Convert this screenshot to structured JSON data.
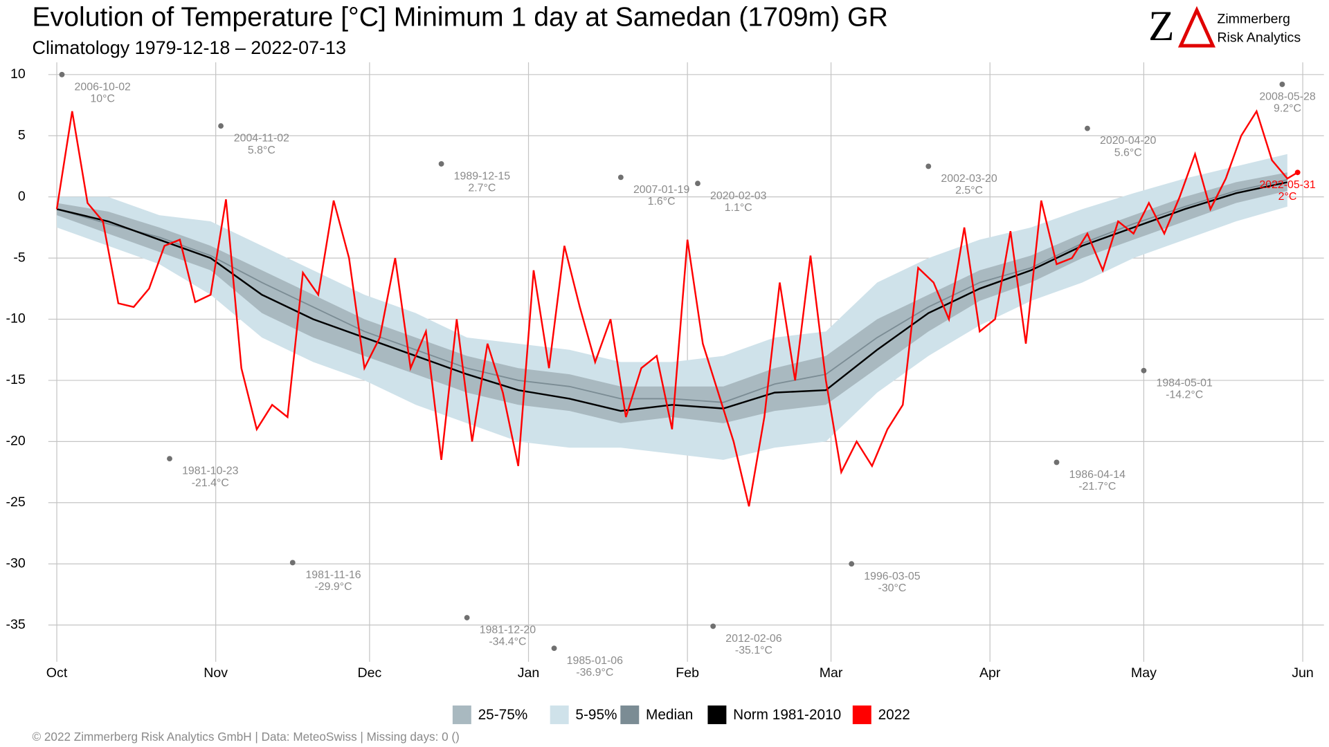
{
  "chart_data": {
    "type": "line",
    "title": "Evolution of Temperature [°C] Minimum 1 day at Samedan (1709m) GR",
    "subtitle": "Climatology 1979-12-18 – 2022-07-13",
    "footer": "©  2022 Zimmerberg Risk Analytics GmbH | Data: MeteoSwiss | Missing days: 0 ()",
    "logo": {
      "letter": "Z",
      "name": "Zimmerberg",
      "subname": "Risk Analytics"
    },
    "grid": true,
    "legend": "bottom",
    "xlim": [
      0,
      243
    ],
    "xticks": [
      {
        "value": 0,
        "label": "Oct"
      },
      {
        "value": 31,
        "label": "Nov"
      },
      {
        "value": 61,
        "label": "Dec"
      },
      {
        "value": 92,
        "label": "Jan"
      },
      {
        "value": 123,
        "label": "Feb"
      },
      {
        "value": 151,
        "label": "Mar"
      },
      {
        "value": 182,
        "label": "Apr"
      },
      {
        "value": 212,
        "label": "May"
      },
      {
        "value": 243,
        "label": "Jun"
      }
    ],
    "ylim": [
      -38,
      11
    ],
    "yticks": [
      10,
      5,
      0,
      -5,
      -10,
      -15,
      -20,
      -25,
      -30,
      -35
    ],
    "x": [
      0,
      10,
      20,
      30,
      40,
      50,
      60,
      70,
      80,
      90,
      100,
      110,
      120,
      130,
      140,
      150,
      160,
      170,
      180,
      190,
      200,
      210,
      220,
      230,
      240
    ],
    "bands": [
      {
        "name": "5-95%",
        "color": "#cfe2ea",
        "lower": [
          -2.5,
          -4,
          -5.5,
          -8,
          -11.5,
          -13.5,
          -15,
          -17,
          -18.5,
          -20,
          -20.5,
          -20.5,
          -21,
          -21.5,
          -20.5,
          -20,
          -16,
          -13,
          -10.5,
          -8.5,
          -7,
          -5,
          -3.5,
          -2,
          -0.8
        ],
        "upper": [
          0,
          0,
          -1.5,
          -2,
          -4,
          -6,
          -8,
          -9.5,
          -11.5,
          -12,
          -12.5,
          -13.5,
          -13.5,
          -13,
          -11.5,
          -11,
          -7,
          -5,
          -3.5,
          -2.5,
          -1,
          0.3,
          1.5,
          2.5,
          3.5
        ]
      },
      {
        "name": "25-75%",
        "color": "#a9b9c0",
        "lower": [
          -1.5,
          -3,
          -4.5,
          -6,
          -9.5,
          -11.5,
          -13,
          -14.5,
          -16,
          -17,
          -17.5,
          -18.5,
          -18,
          -18.5,
          -17.5,
          -17,
          -14,
          -11,
          -8.5,
          -7,
          -5,
          -3.5,
          -2,
          -0.5,
          0.5
        ],
        "upper": [
          -0.5,
          -1.2,
          -2.5,
          -4,
          -6,
          -8,
          -10,
          -11.5,
          -13,
          -14,
          -14.5,
          -15.5,
          -15.5,
          -15.5,
          -14,
          -13,
          -10,
          -8,
          -6,
          -4.8,
          -3,
          -1.5,
          0,
          1.2,
          2
        ]
      }
    ],
    "series": [
      {
        "name": "Median",
        "color": "#7b8c94",
        "values": [
          -1,
          -2.2,
          -3.3,
          -4.8,
          -7,
          -9,
          -11,
          -12.5,
          -14,
          -15,
          -15.5,
          -16.5,
          -16.5,
          -16.8,
          -15.3,
          -14.5,
          -11.5,
          -9,
          -7,
          -5.8,
          -3.8,
          -2.2,
          -0.8,
          0.5,
          1.4
        ]
      },
      {
        "name": "Norm 1981-2010",
        "color": "#000000",
        "values": [
          -1,
          -2,
          -3.5,
          -5,
          -8,
          -10,
          -11.5,
          -13,
          -14.5,
          -15.8,
          -16.5,
          -17.5,
          -17,
          -17.3,
          -16,
          -15.8,
          -12.5,
          -9.5,
          -7.5,
          -6,
          -4,
          -2.5,
          -1,
          0.3,
          1.2
        ]
      },
      {
        "name": "2022",
        "color": "#ff0000",
        "x": [
          0,
          3,
          6,
          9,
          12,
          15,
          18,
          21,
          24,
          27,
          30,
          33,
          36,
          39,
          42,
          45,
          48,
          51,
          54,
          57,
          60,
          63,
          66,
          69,
          72,
          75,
          78,
          81,
          84,
          87,
          90,
          93,
          96,
          99,
          102,
          105,
          108,
          111,
          114,
          117,
          120,
          123,
          126,
          129,
          132,
          135,
          138,
          141,
          144,
          147,
          150,
          153,
          156,
          159,
          162,
          165,
          168,
          171,
          174,
          177,
          180,
          183,
          186,
          189,
          192,
          195,
          198,
          201,
          204,
          207,
          210,
          213,
          216,
          219,
          222,
          225,
          228,
          231,
          234,
          237,
          240,
          242
        ],
        "values": [
          -1,
          7,
          -0.5,
          -2,
          -8.7,
          -9,
          -7.5,
          -4,
          -3.5,
          -8.6,
          -8,
          -0.2,
          -14,
          -19,
          -17,
          -18,
          -6.2,
          -8,
          -0.3,
          -5,
          -14,
          -11.5,
          -5,
          -14,
          -11,
          -21.5,
          -10,
          -20,
          -12,
          -16,
          -22,
          -6,
          -14,
          -4,
          -9,
          -13.5,
          -10,
          -18,
          -14,
          -13,
          -19,
          -3.5,
          -12,
          -16,
          -20,
          -25.3,
          -18,
          -7,
          -15,
          -4.8,
          -15,
          -22.5,
          -20,
          -22,
          -19,
          -17,
          -5.8,
          -7,
          -10,
          -2.5,
          -11,
          -10,
          -2.8,
          -12,
          -0.3,
          -5.5,
          -5,
          -3,
          -6,
          -2,
          -3,
          -0.5,
          -3,
          0,
          3.5,
          -1,
          1.5,
          5,
          7,
          3,
          1.5,
          2
        ]
      }
    ],
    "annotations": [
      {
        "x": 1,
        "value": 10,
        "label": "2006-10-02",
        "value_label": "10°C",
        "color": "#707070"
      },
      {
        "x": 32,
        "value": 5.8,
        "label": "2004-11-02",
        "value_label": "5.8°C",
        "color": "#707070"
      },
      {
        "x": 22,
        "value": -21.4,
        "label": "1981-10-23",
        "value_label": "-21.4°C",
        "color": "#707070"
      },
      {
        "x": 46,
        "value": -29.9,
        "label": "1981-11-16",
        "value_label": "-29.9°C",
        "color": "#707070"
      },
      {
        "x": 75,
        "value": 2.7,
        "label": "1989-12-15",
        "value_label": "2.7°C",
        "color": "#707070"
      },
      {
        "x": 80,
        "value": -34.4,
        "label": "1981-12-20",
        "value_label": "-34.4°C",
        "color": "#707070"
      },
      {
        "x": 97,
        "value": -36.9,
        "label": "1985-01-06",
        "value_label": "-36.9°C",
        "color": "#707070"
      },
      {
        "x": 110,
        "value": 1.6,
        "label": "2007-01-19",
        "value_label": "1.6°C",
        "color": "#707070"
      },
      {
        "x": 125,
        "value": 1.1,
        "label": "2020-02-03",
        "value_label": "1.1°C",
        "color": "#707070"
      },
      {
        "x": 128,
        "value": -35.1,
        "label": "2012-02-06",
        "value_label": "-35.1°C",
        "color": "#707070"
      },
      {
        "x": 155,
        "value": -30,
        "label": "1996-03-05",
        "value_label": "-30°C",
        "color": "#707070"
      },
      {
        "x": 170,
        "value": 2.5,
        "label": "2002-03-20",
        "value_label": "2.5°C",
        "color": "#707070"
      },
      {
        "x": 195,
        "value": -21.7,
        "label": "1986-04-14",
        "value_label": "-21.7°C",
        "color": "#707070"
      },
      {
        "x": 201,
        "value": 5.6,
        "label": "2020-04-20",
        "value_label": "5.6°C",
        "color": "#707070"
      },
      {
        "x": 212,
        "value": -14.2,
        "label": "1984-05-01",
        "value_label": "-14.2°C",
        "color": "#707070"
      },
      {
        "x": 239,
        "value": 9.2,
        "label": "2008-05-28",
        "value_label": "9.2°C",
        "color": "#707070"
      },
      {
        "x": 242,
        "value": 2,
        "label": "2022-05-31",
        "value_label": "2°C",
        "color": "#ff0000"
      }
    ]
  }
}
